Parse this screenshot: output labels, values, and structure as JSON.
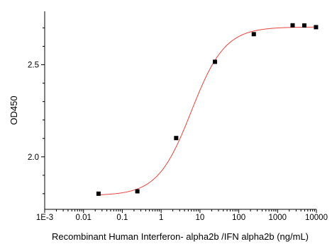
{
  "chart_data": {
    "type": "scatter",
    "xlabel": "Recombinant Human Interferon- alpha2b /IFN alpha2b (ng/mL)",
    "ylabel": "OD450",
    "x_scale": "log",
    "xlim": [
      0.001,
      10000
    ],
    "ylim": [
      1.715,
      2.79
    ],
    "x_ticks": [
      {
        "value": 0.001,
        "label": "1E-3"
      },
      {
        "value": 0.01,
        "label": "0.01"
      },
      {
        "value": 0.1,
        "label": "0.1"
      },
      {
        "value": 1,
        "label": "1"
      },
      {
        "value": 10,
        "label": "10"
      },
      {
        "value": 100,
        "label": "100"
      },
      {
        "value": 1000,
        "label": "1000"
      },
      {
        "value": 10000,
        "label": "10000"
      }
    ],
    "y_ticks": [
      {
        "value": 2.0,
        "label": "2.0"
      },
      {
        "value": 2.5,
        "label": "2.5"
      }
    ],
    "grid": false,
    "points": {
      "x": [
        0.0244,
        0.244,
        2.44,
        24.4,
        244,
        2441,
        4883,
        9766
      ],
      "y": [
        1.8,
        1.813,
        2.102,
        2.516,
        2.666,
        2.714,
        2.713,
        2.704
      ]
    },
    "fit": {
      "model": "4PL",
      "bottom": 1.79,
      "top": 2.705,
      "ec50": 6.0,
      "hill": 1.0,
      "color": "#e8453c"
    },
    "marker_color": "#000000"
  }
}
